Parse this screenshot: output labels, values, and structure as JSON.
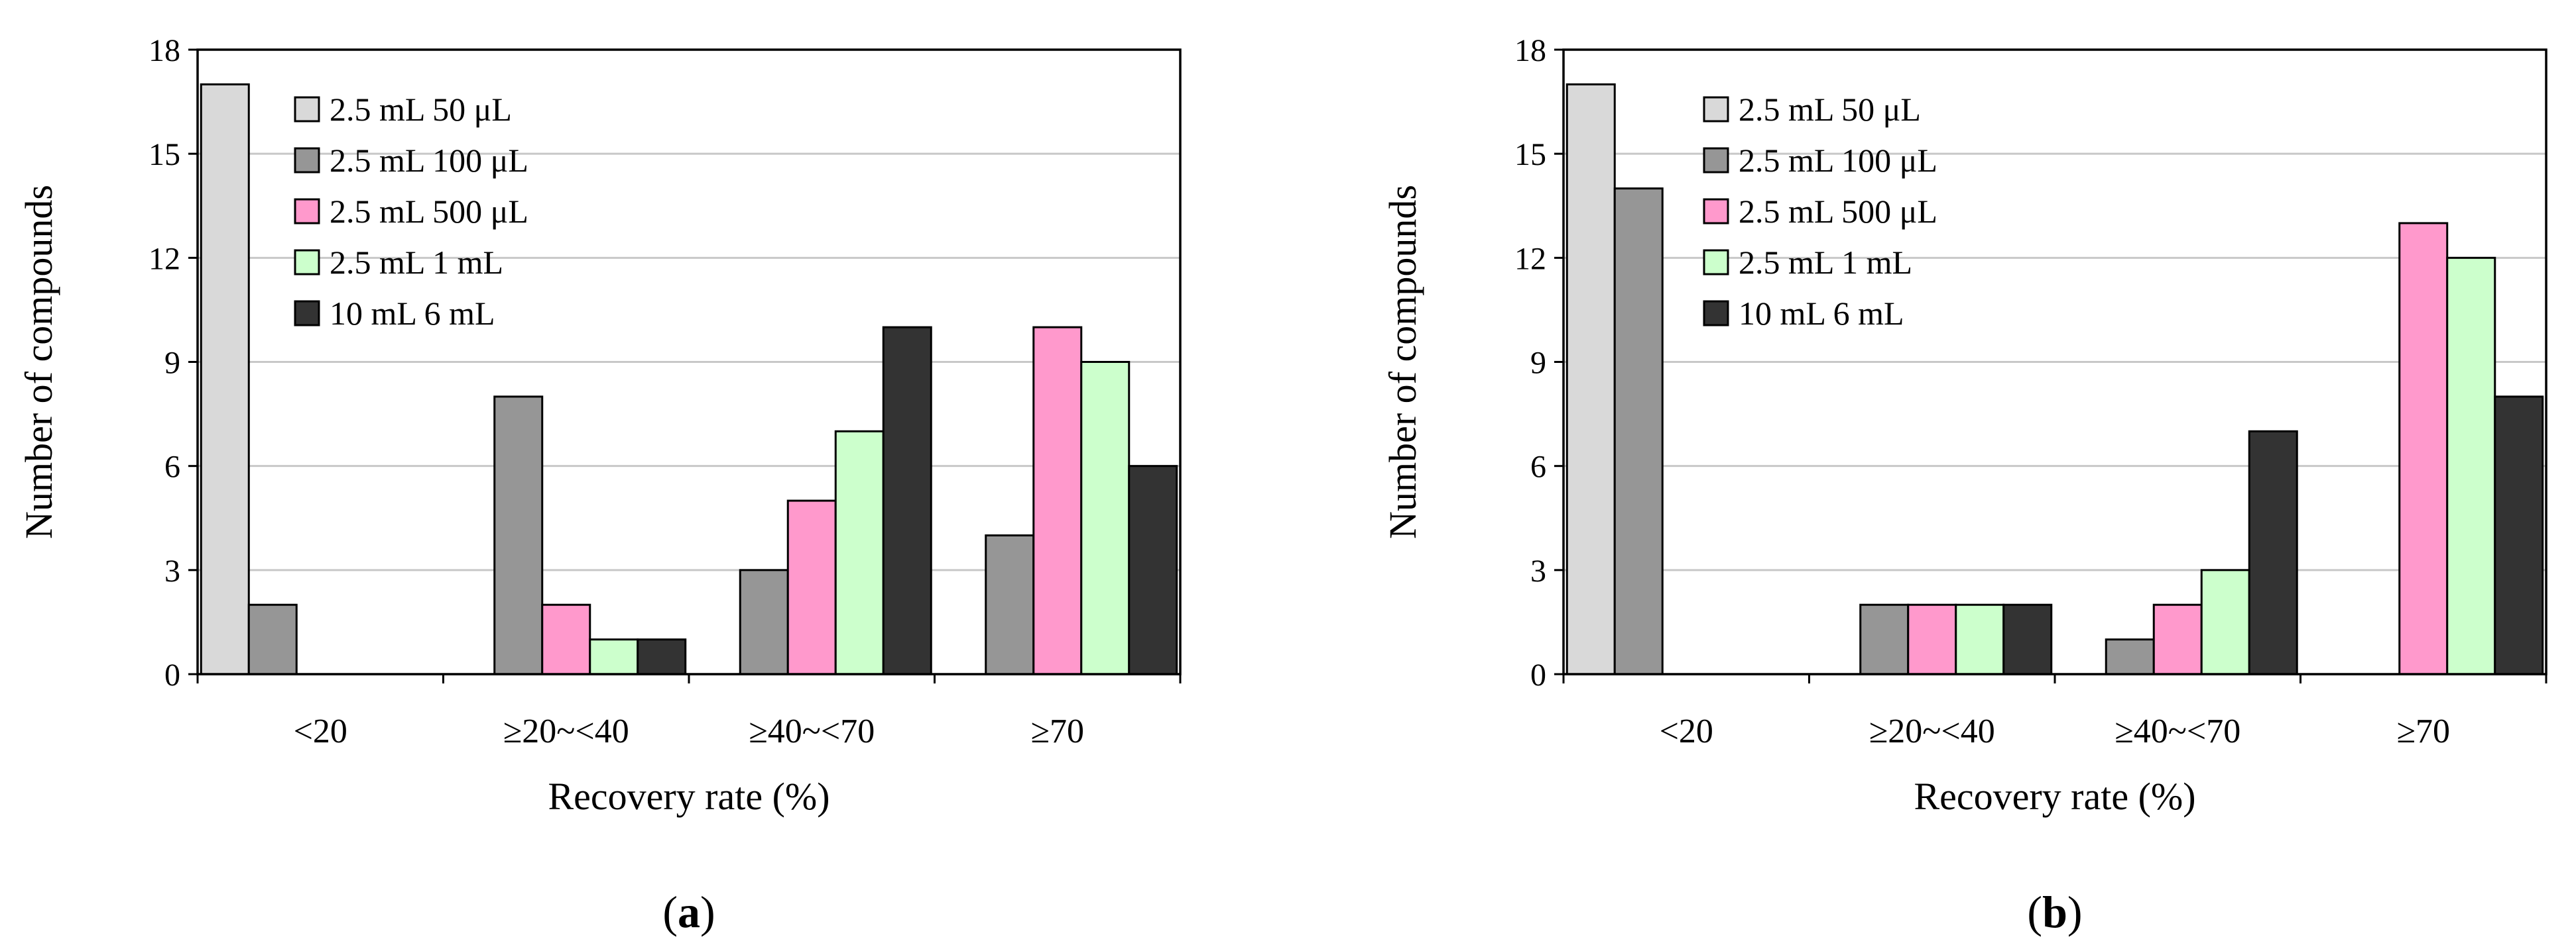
{
  "chart_data": [
    {
      "type": "bar",
      "panel_label": "a",
      "xlabel": "Recovery rate (%)",
      "ylabel": "Number of compounds",
      "ylim": [
        0,
        18
      ],
      "yticks": [
        0,
        3,
        6,
        9,
        12,
        15,
        18
      ],
      "grid": true,
      "legend_position": "top-left",
      "categories": [
        "<20",
        "≥20~<40",
        "≥40~<70",
        "≥70"
      ],
      "series": [
        {
          "name": "2.5 mL 50 μL",
          "color": "#d9d9d9",
          "values": [
            17,
            0,
            0,
            0
          ]
        },
        {
          "name": "2.5 mL 100 μL",
          "color": "#969696",
          "values": [
            2,
            8,
            3,
            4
          ]
        },
        {
          "name": "2.5 mL 500 μL",
          "color": "#ff99cc",
          "values": [
            0,
            2,
            5,
            10
          ]
        },
        {
          "name": "2.5 mL 1 mL",
          "color": "#ccffcc",
          "values": [
            0,
            1,
            7,
            9
          ]
        },
        {
          "name": "10 mL 6 mL",
          "color": "#333333",
          "values": [
            0,
            1,
            10,
            6
          ]
        }
      ]
    },
    {
      "type": "bar",
      "panel_label": "b",
      "xlabel": "Recovery rate (%)",
      "ylabel": "Number of compounds",
      "ylim": [
        0,
        18
      ],
      "yticks": [
        0,
        3,
        6,
        9,
        12,
        15,
        18
      ],
      "grid": true,
      "legend_position": "top-left",
      "categories": [
        "<20",
        "≥20~<40",
        "≥40~<70",
        "≥70"
      ],
      "series": [
        {
          "name": "2.5 mL 50 μL",
          "color": "#d9d9d9",
          "values": [
            17,
            0,
            0,
            0
          ]
        },
        {
          "name": "2.5 mL 100 μL",
          "color": "#969696",
          "values": [
            14,
            2,
            1,
            0
          ]
        },
        {
          "name": "2.5 mL 500 μL",
          "color": "#ff99cc",
          "values": [
            0,
            2,
            2,
            13
          ]
        },
        {
          "name": "2.5 mL 1 mL",
          "color": "#ccffcc",
          "values": [
            0,
            2,
            3,
            12
          ]
        },
        {
          "name": "10 mL 6 mL",
          "color": "#333333",
          "values": [
            0,
            2,
            7,
            8
          ]
        }
      ]
    }
  ]
}
